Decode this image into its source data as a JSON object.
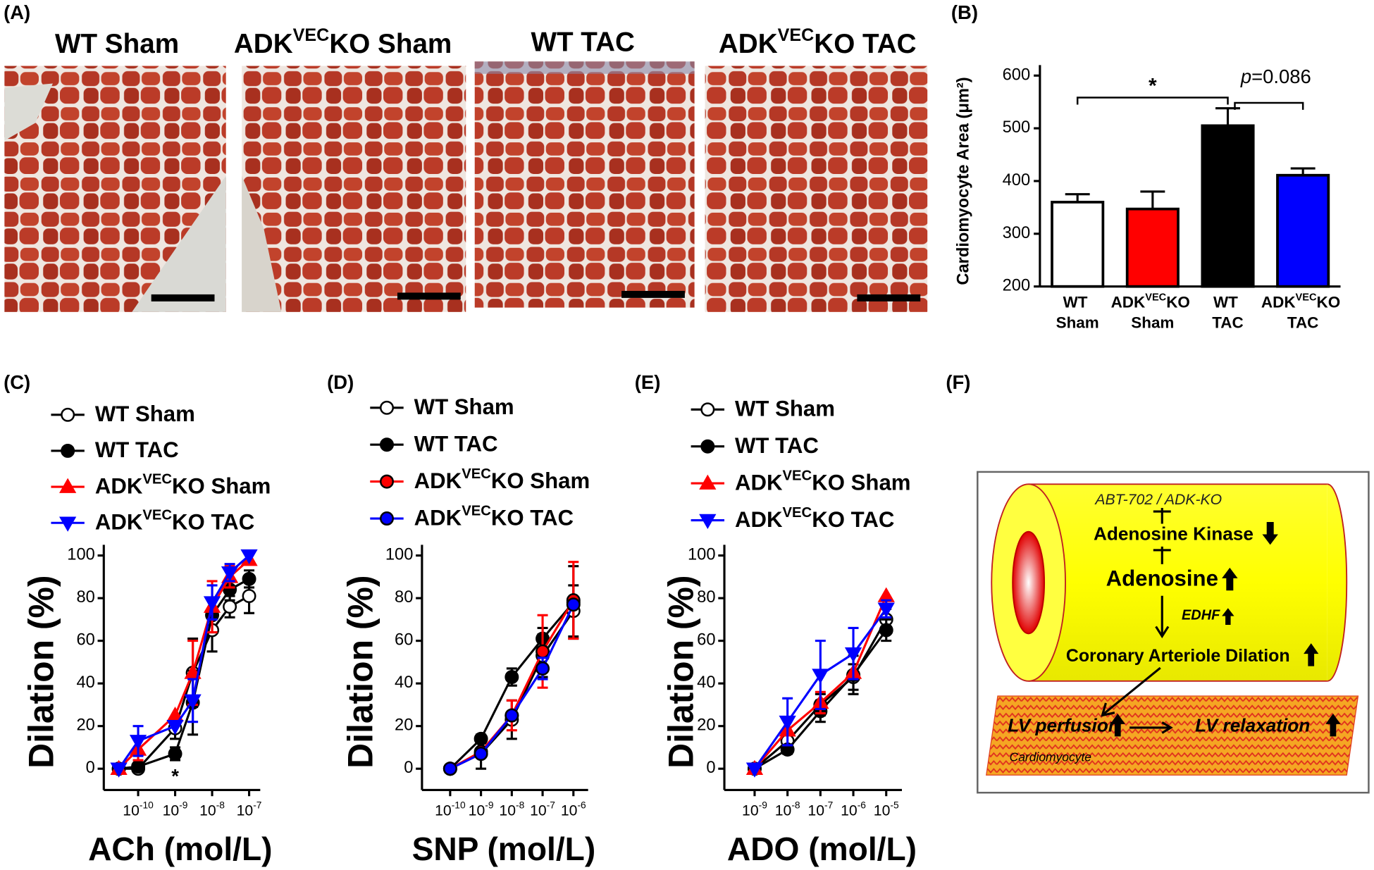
{
  "panel_labels": [
    "(A)",
    "(B)",
    "(C)",
    "(D)",
    "(E)",
    "(F)"
  ],
  "micrographs": [
    "WT Sham",
    "ADKVECKO Sham",
    "WT TAC",
    "ADKVECKO TAC"
  ],
  "chart_data": [
    {
      "type": "bar",
      "y_label": "Cardiomyocyte Area (μm²)",
      "categories": [
        "WT Sham",
        "ADKVECKO Sham",
        "WT TAC",
        "ADKVECKO TAC"
      ],
      "values": [
        360,
        347,
        505,
        411
      ],
      "errors": [
        15,
        33,
        33,
        13
      ],
      "colors": [
        "#ffffff",
        "#ff0000",
        "#000000",
        "#0000ff"
      ],
      "ylim": [
        200,
        600
      ],
      "yticks": [
        200,
        300,
        400,
        500,
        600
      ],
      "annotations": [
        "*",
        "p=0.086"
      ]
    },
    {
      "type": "line",
      "log_x": true,
      "x_label": "ACh (mol/L)",
      "y_label": "Dilation (%)",
      "x": [
        3e-11,
        1e-10,
        1e-09,
        3e-09,
        1e-08,
        3e-08,
        1e-07
      ],
      "xlim": [
        1e-11,
        2e-07
      ],
      "xticks": [
        {
          "value": 1e-10,
          "label": "10-10"
        },
        {
          "value": 1e-09,
          "label": "10-9"
        },
        {
          "value": 1e-08,
          "label": "10-8"
        },
        {
          "value": 1e-07,
          "label": "10-7"
        }
      ],
      "ylim": [
        -10,
        105
      ],
      "yticks": [
        0,
        20,
        40,
        60,
        80,
        100
      ],
      "series": [
        {
          "name": "WT Sham",
          "color": "#000000",
          "marker": "circle-open",
          "values": [
            0,
            0,
            19,
            45,
            65,
            76,
            81
          ],
          "errors": [
            null,
            null,
            5,
            16,
            10,
            5,
            8
          ]
        },
        {
          "name": "WT TAC",
          "color": "#000000",
          "marker": "circle",
          "values": [
            0,
            1,
            7,
            31,
            72,
            84,
            89
          ],
          "errors": [
            null,
            null,
            3,
            15,
            8,
            5,
            4
          ]
        },
        {
          "name": "ADKVECKO Sham",
          "color": "#ff0000",
          "marker": "triangle-up",
          "values": [
            0,
            9,
            25,
            45,
            76,
            90,
            98
          ],
          "errors": [
            null,
            5,
            null,
            15,
            12,
            5,
            null
          ]
        },
        {
          "name": "ADKVECKO TAC",
          "color": "#0000ff",
          "marker": "triangle-down",
          "values": [
            0,
            13,
            20,
            32,
            78,
            92,
            100
          ],
          "errors": [
            null,
            7,
            null,
            10,
            8,
            4,
            null
          ]
        }
      ],
      "annotations": [
        "*"
      ]
    },
    {
      "type": "line",
      "log_x": true,
      "x_label": "SNP (mol/L)",
      "y_label": "Dilation (%)",
      "x": [
        1e-10,
        1e-09,
        1e-08,
        1e-07,
        1e-06
      ],
      "xlim": [
        1e-11,
        3e-06
      ],
      "xticks": [
        {
          "value": 1e-10,
          "label": "10-10"
        },
        {
          "value": 1e-09,
          "label": "10-9"
        },
        {
          "value": 1e-08,
          "label": "10-8"
        },
        {
          "value": 1e-07,
          "label": "10-7"
        },
        {
          "value": 1e-06,
          "label": "10-6"
        }
      ],
      "ylim": [
        -10,
        105
      ],
      "yticks": [
        0,
        20,
        40,
        60,
        80,
        100
      ],
      "series": [
        {
          "name": "WT Sham",
          "color": "#000000",
          "marker": "circle-open",
          "values": [
            0,
            7,
            23,
            53,
            74
          ],
          "errors": [
            null,
            7,
            9,
            10,
            12
          ]
        },
        {
          "name": "WT TAC",
          "color": "#000000",
          "marker": "circle",
          "values": [
            0,
            14,
            43,
            61,
            78
          ],
          "errors": [
            null,
            2,
            4,
            5,
            17
          ]
        },
        {
          "name": "ADKVECKO Sham",
          "color": "#ff0000",
          "marker": "circle",
          "values": [
            0,
            8,
            25,
            55,
            79
          ],
          "errors": [
            null,
            null,
            7,
            17,
            18
          ]
        },
        {
          "name": "ADKVECKO TAC",
          "color": "#0000ff",
          "marker": "circle",
          "values": [
            0,
            7,
            25,
            47,
            77
          ],
          "errors": [
            null,
            null,
            null,
            5,
            null
          ]
        }
      ]
    },
    {
      "type": "line",
      "log_x": true,
      "x_label": "ADO (mol/L)",
      "y_label": "Dilation (%)",
      "x": [
        1e-09,
        1e-08,
        1e-07,
        1e-06,
        1e-05
      ],
      "xlim": [
        1e-10,
        3e-05
      ],
      "xticks": [
        {
          "value": 1e-09,
          "label": "10-9"
        },
        {
          "value": 1e-08,
          "label": "10-8"
        },
        {
          "value": 1e-07,
          "label": "10-7"
        },
        {
          "value": 1e-06,
          "label": "10-6"
        },
        {
          "value": 1e-05,
          "label": "10-5"
        }
      ],
      "ylim": [
        -10,
        105
      ],
      "yticks": [
        0,
        20,
        40,
        60,
        80,
        100
      ],
      "series": [
        {
          "name": "WT Sham",
          "color": "#000000",
          "marker": "circle-open",
          "values": [
            0,
            13,
            30,
            43,
            70
          ],
          "errors": [
            null,
            3,
            5,
            6,
            5
          ]
        },
        {
          "name": "WT TAC",
          "color": "#000000",
          "marker": "circle",
          "values": [
            0,
            9,
            27,
            44,
            65
          ],
          "errors": [
            null,
            2,
            5,
            9,
            5
          ]
        },
        {
          "name": "ADKVECKO Sham",
          "color": "#ff0000",
          "marker": "triangle-up",
          "values": [
            0,
            18,
            31,
            45,
            81
          ],
          "errors": [
            null,
            null,
            5,
            null,
            null
          ]
        },
        {
          "name": "ADKVECKO TAC",
          "color": "#0000ff",
          "marker": "triangle-down",
          "values": [
            0,
            22,
            44,
            54,
            75
          ],
          "errors": [
            null,
            11,
            16,
            12,
            4
          ]
        }
      ]
    }
  ],
  "diagram": {
    "inhibitor": "ABT-702 / ADK-KO",
    "kinase": "Adenosine Kinase",
    "adenosine": "Adenosine",
    "edhf": "EDHF",
    "dilation": "Coronary Arteriole Dilation",
    "perfusion": "LV perfusion",
    "relaxation": "LV relaxation",
    "cell": "Cardiomyocyte"
  }
}
